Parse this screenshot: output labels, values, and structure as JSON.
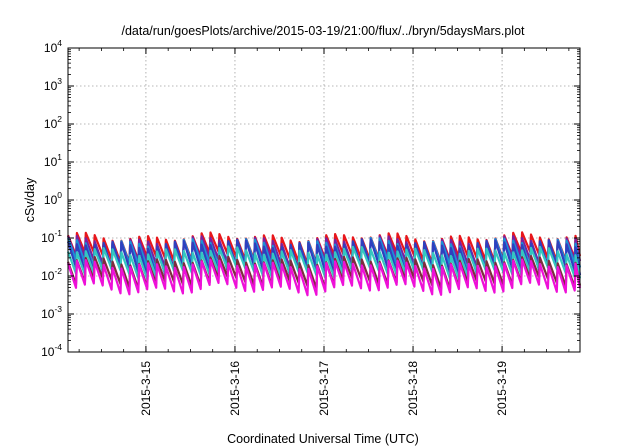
{
  "chart_data": {
    "type": "line",
    "title": "/data/run/goesPlots/archive/2015-03-19/21:00/flux/../bryn/5daysMars.plot",
    "xlabel": "Coordinated Universal Time (UTC)",
    "ylabel": "cSv/day",
    "yscale": "log",
    "ylim": [
      0.0001,
      10000
    ],
    "xlim": [
      "2015-03-14 03:00",
      "2015-03-19 21:00"
    ],
    "grid": true,
    "y_ticks": [
      {
        "base": "10",
        "exp": "-4",
        "value": 0.0001
      },
      {
        "base": "10",
        "exp": "-3",
        "value": 0.001
      },
      {
        "base": "10",
        "exp": "-2",
        "value": 0.01
      },
      {
        "base": "10",
        "exp": "-1",
        "value": 0.1
      },
      {
        "base": "10",
        "exp": "0",
        "value": 1
      },
      {
        "base": "10",
        "exp": "1",
        "value": 10
      },
      {
        "base": "10",
        "exp": "2",
        "value": 100
      },
      {
        "base": "10",
        "exp": "3",
        "value": 1000
      },
      {
        "base": "10",
        "exp": "4",
        "value": 10000
      }
    ],
    "x_ticks": [
      "2015-3-15",
      "2015-3-16",
      "2015-3-17",
      "2015-3-18",
      "2015-3-19"
    ],
    "cycles_per_day": 10,
    "series": [
      {
        "color": "#e8161b",
        "peak": 0.105,
        "trough": 0.03
      },
      {
        "color": "#7a1fa0",
        "peak": 0.085,
        "trough": 0.022
      },
      {
        "color": "#1a8fd6",
        "peak": 0.075,
        "trough": 0.018
      },
      {
        "color": "#2f3fbf",
        "peak": 0.07,
        "trough": 0.014
      },
      {
        "color": "#34c7c0",
        "peak": 0.045,
        "trough": 0.012
      },
      {
        "color": "#7e2c3e",
        "peak": 0.025,
        "trough": 0.0065
      },
      {
        "color": "#ee10d8",
        "peak": 0.02,
        "trough": 0.0045
      }
    ]
  }
}
